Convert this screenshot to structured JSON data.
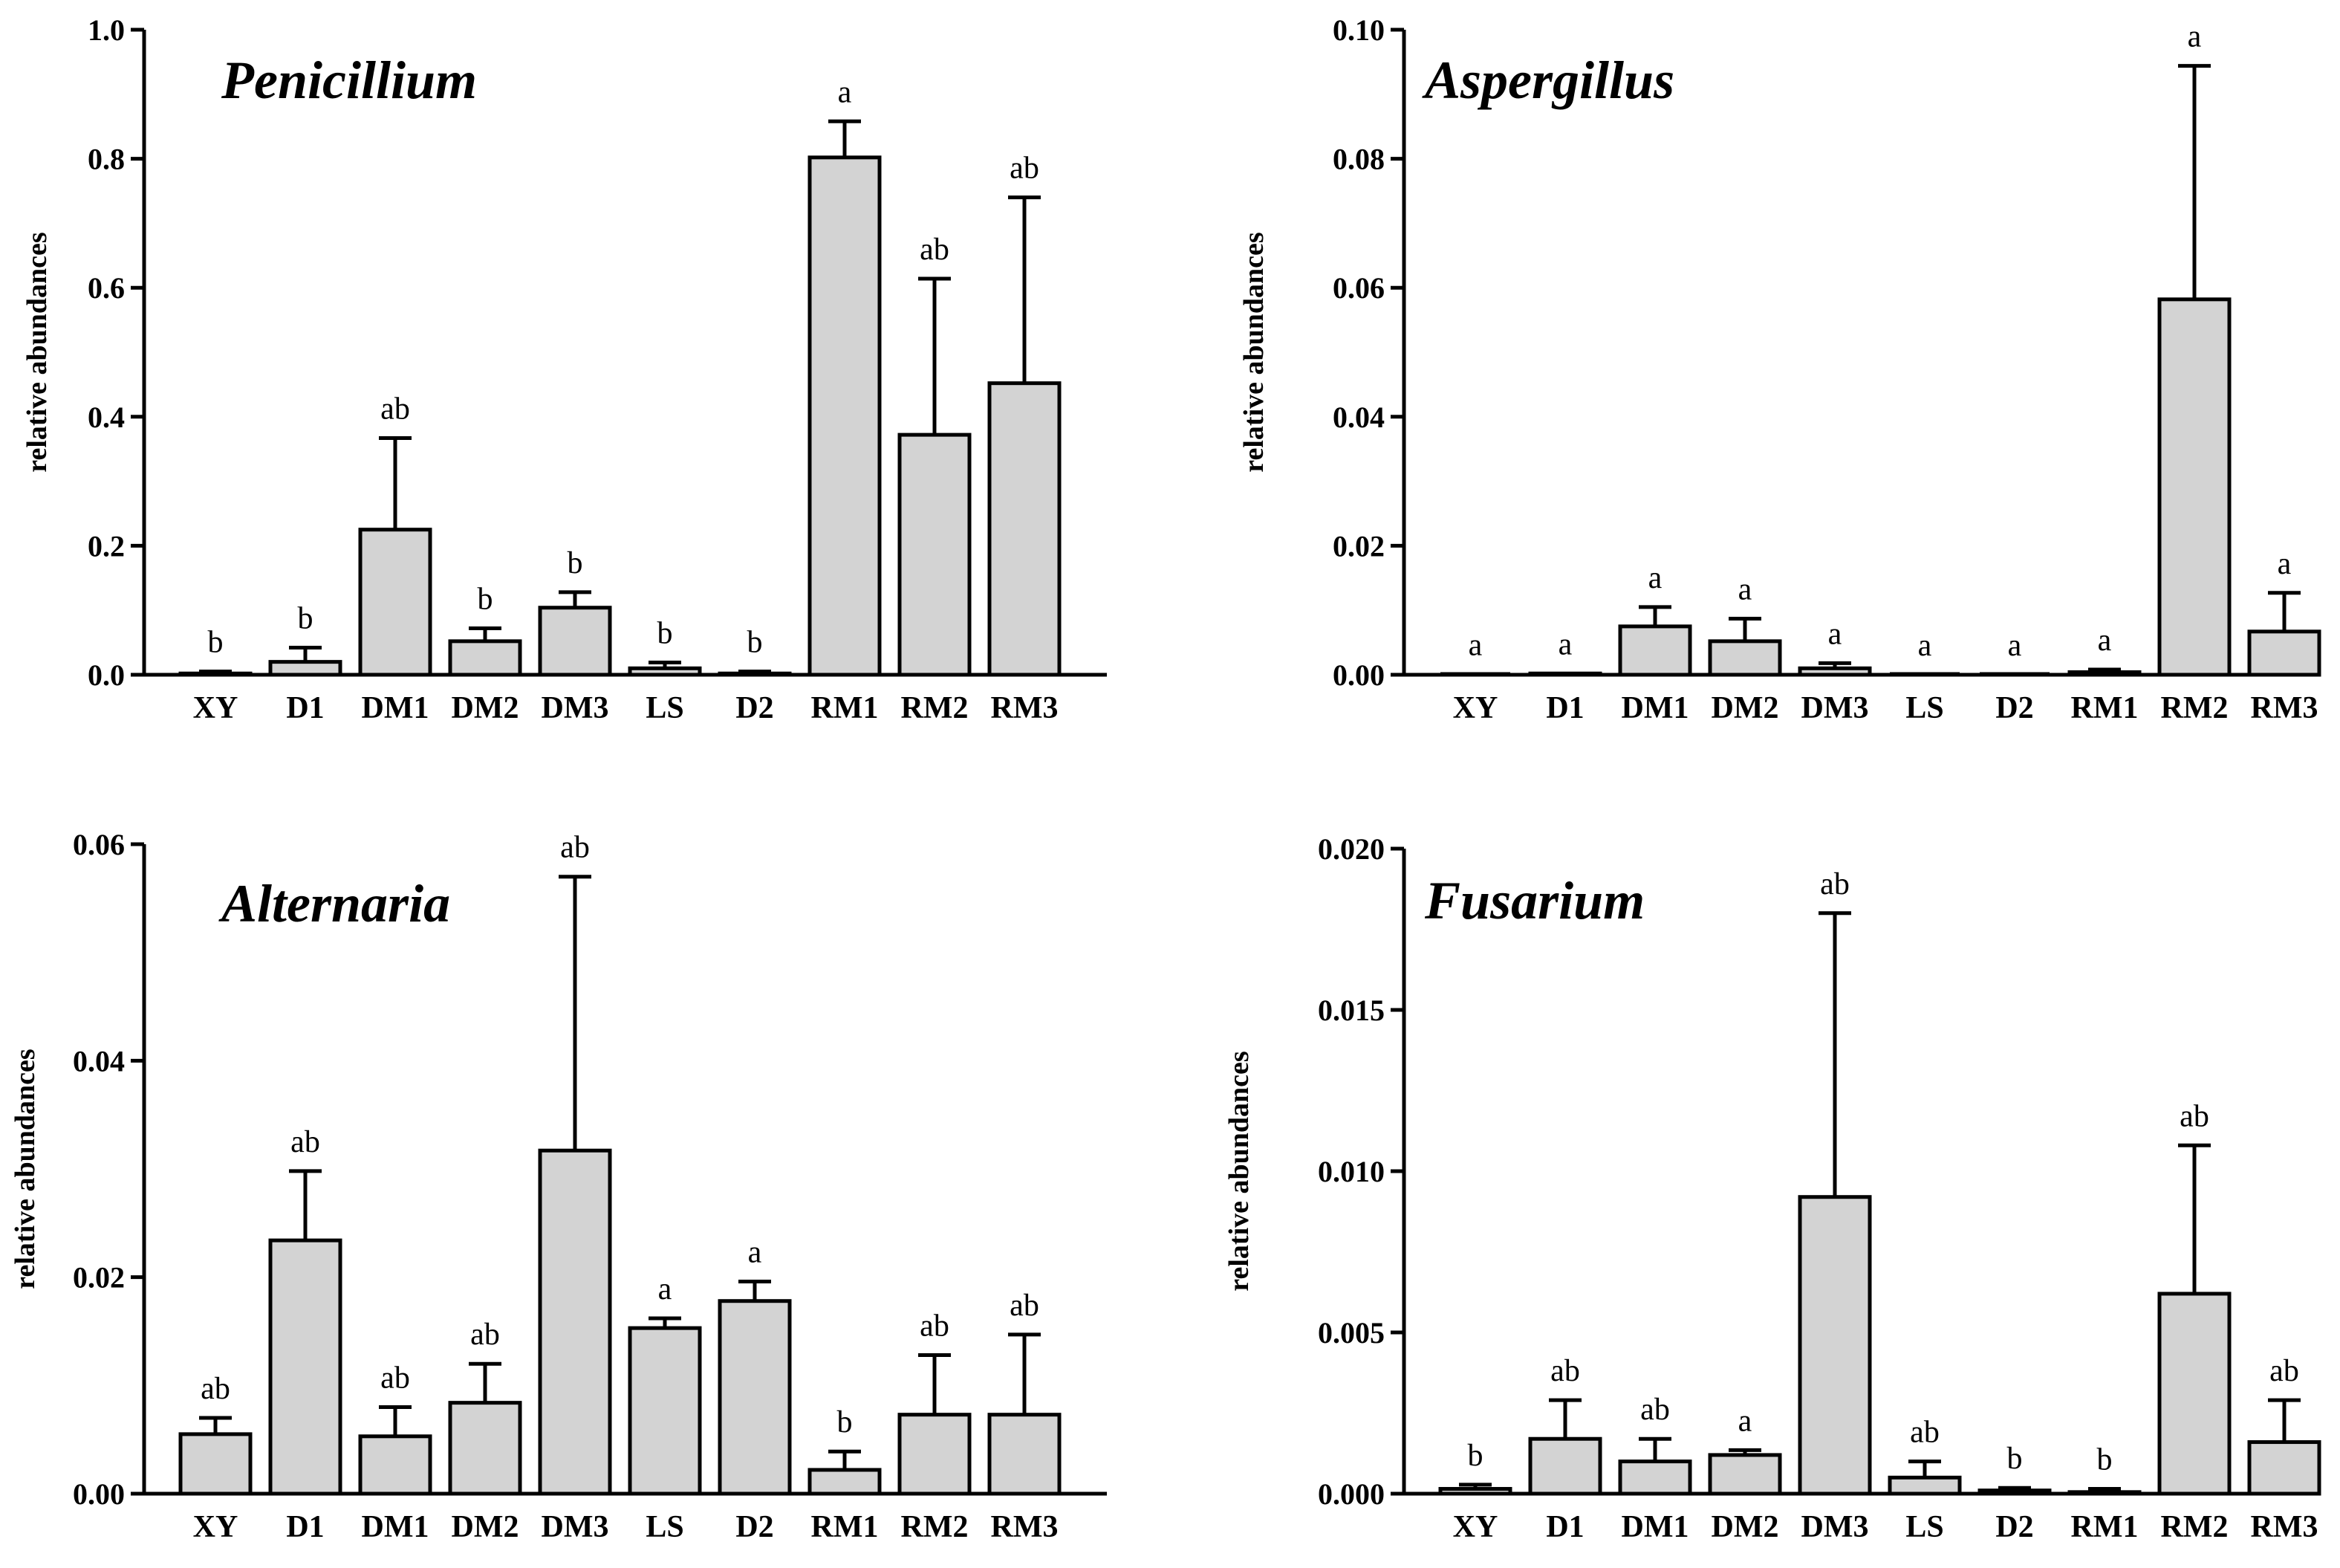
{
  "chart_data": [
    {
      "type": "bar",
      "title": "Penicillium",
      "xlabel": "",
      "ylabel": "relative abundances",
      "categories": [
        "XY",
        "D1",
        "DM1",
        "DM2",
        "DM3",
        "LS",
        "D2",
        "RM1",
        "RM2",
        "RM3"
      ],
      "values": [
        0.002,
        0.02,
        0.225,
        0.052,
        0.104,
        0.01,
        0.002,
        0.802,
        0.372,
        0.452
      ],
      "error": [
        0.003,
        0.022,
        0.142,
        0.02,
        0.024,
        0.009,
        0.003,
        0.056,
        0.242,
        0.288
      ],
      "letters": [
        "b",
        "b",
        "ab",
        "b",
        "b",
        "b",
        "b",
        "a",
        "ab",
        "ab"
      ],
      "ylim": [
        0,
        1.0
      ],
      "yticks": [
        "0.0",
        "0.2",
        "0.4",
        "0.6",
        "0.8",
        "1.0"
      ]
    },
    {
      "type": "bar",
      "title": "Aspergillus",
      "xlabel": "",
      "ylabel": "relative abundances",
      "categories": [
        "XY",
        "D1",
        "DM1",
        "DM2",
        "DM3",
        "LS",
        "D2",
        "RM1",
        "RM2",
        "RM3"
      ],
      "values": [
        5e-05,
        0.0002,
        0.0075,
        0.0052,
        0.001,
        0.0,
        0.0,
        0.0004,
        0.0582,
        0.0067
      ],
      "error": [
        0.0,
        0.0,
        0.003,
        0.0035,
        0.0008,
        0.0,
        0.0,
        0.0004,
        0.0362,
        0.006
      ],
      "letters": [
        "a",
        "a",
        "a",
        "a",
        "a",
        "a",
        "a",
        "a",
        "a",
        "a"
      ],
      "ylim": [
        0,
        0.1
      ],
      "yticks": [
        "0.00",
        "0.02",
        "0.04",
        "0.06",
        "0.08",
        "0.10"
      ]
    },
    {
      "type": "bar",
      "title": "Alternaria",
      "xlabel": "",
      "ylabel": "relative abundances",
      "categories": [
        "XY",
        "D1",
        "DM1",
        "DM2",
        "DM3",
        "LS",
        "D2",
        "RM1",
        "RM2",
        "RM3"
      ],
      "values": [
        0.0055,
        0.0234,
        0.0053,
        0.0084,
        0.0317,
        0.0153,
        0.0178,
        0.0022,
        0.0073,
        0.0073
      ],
      "error": [
        0.0015,
        0.0064,
        0.0027,
        0.0036,
        0.0253,
        0.0009,
        0.0018,
        0.0017,
        0.0055,
        0.0074
      ],
      "letters": [
        "ab",
        "ab",
        "ab",
        "ab",
        "ab",
        "a",
        "a",
        "b",
        "ab",
        "ab"
      ],
      "ylim": [
        0,
        0.06
      ],
      "yticks": [
        "0.00",
        "0.02",
        "0.04",
        "0.06"
      ]
    },
    {
      "type": "bar",
      "title": "Fusarium",
      "xlabel": "",
      "ylabel": "relative abundances",
      "categories": [
        "XY",
        "D1",
        "DM1",
        "DM2",
        "DM3",
        "LS",
        "D2",
        "RM1",
        "RM2",
        "RM3"
      ],
      "values": [
        0.00015,
        0.0017,
        0.001,
        0.0012,
        0.0092,
        0.0005,
        0.0001,
        5e-05,
        0.0062,
        0.0016
      ],
      "error": [
        0.00013,
        0.0012,
        0.0007,
        0.00015,
        0.0088,
        0.0005,
        8e-05,
        0.0001,
        0.0046,
        0.0013
      ],
      "letters": [
        "b",
        "ab",
        "ab",
        "a",
        "ab",
        "ab",
        "b",
        "b",
        "ab",
        "ab"
      ],
      "ylim": [
        0,
        0.02
      ],
      "yticks": [
        "0.000",
        "0.005",
        "0.010",
        "0.015",
        "0.020"
      ]
    }
  ],
  "colors": {
    "bar_fill": "#d3d3d3",
    "stroke": "#000000"
  }
}
